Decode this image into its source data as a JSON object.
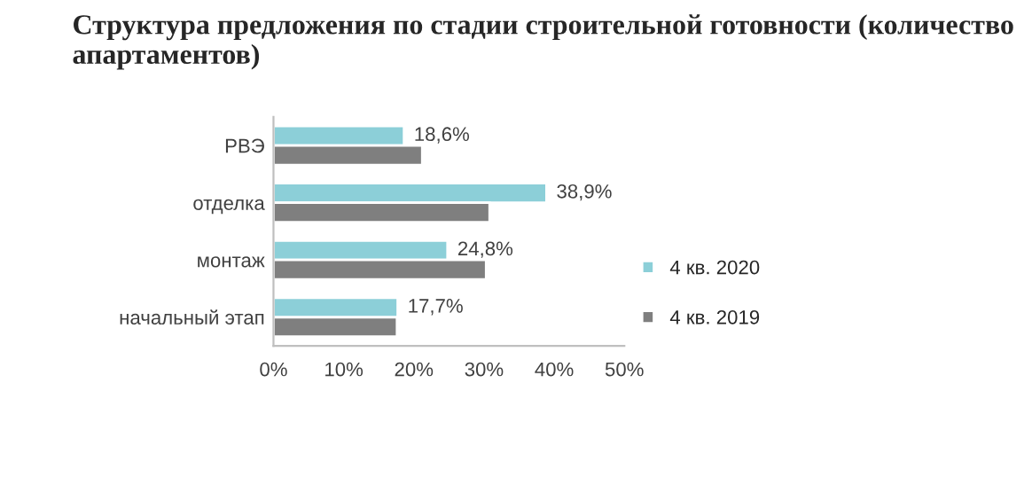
{
  "chart_data": {
    "type": "bar",
    "orientation": "horizontal",
    "title": "Структура предложения по стадии строительной готовности (количество апартаментов)",
    "categories": [
      "РВЭ",
      "отделка",
      "монтаж",
      "начальный этап"
    ],
    "series": [
      {
        "name": "4 кв. 2020",
        "color": "#8ccfd8",
        "values": [
          18.6,
          38.9,
          24.8,
          17.7
        ],
        "value_labels": [
          "18,6%",
          "38,9%",
          "24,8%",
          "17,7%"
        ]
      },
      {
        "name": "4 кв. 2019",
        "color": "#7f7f7f",
        "values": [
          21.2,
          30.8,
          30.3,
          17.6
        ]
      }
    ],
    "xlim": [
      0,
      50
    ],
    "xticks": [
      {
        "value": 0,
        "label": "0%"
      },
      {
        "value": 10,
        "label": "10%"
      },
      {
        "value": 20,
        "label": "20%"
      },
      {
        "value": 30,
        "label": "30%"
      },
      {
        "value": 40,
        "label": "40%"
      },
      {
        "value": 50,
        "label": "50%"
      }
    ],
    "legend": "right",
    "grid": false
  }
}
